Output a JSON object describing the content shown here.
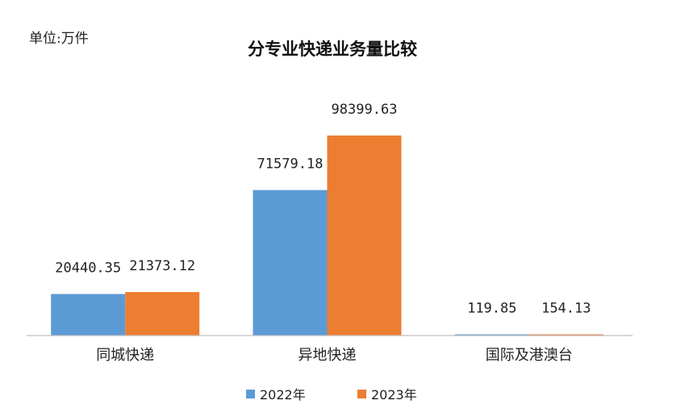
{
  "chart_data": {
    "type": "bar",
    "title": "分专业快递业务量比较",
    "unit_label": "单位:万件",
    "categories": [
      "同城快递",
      "异地快递",
      "国际及港澳台"
    ],
    "series": [
      {
        "name": "2022年",
        "color": "#5B9BD5",
        "values": [
          20440.35,
          71579.18,
          119.85
        ],
        "labels": [
          "20440.35",
          "71579.18",
          "119.85"
        ]
      },
      {
        "name": "2023年",
        "color": "#ED7D31",
        "values": [
          21373.12,
          98399.63,
          154.13
        ],
        "labels": [
          "21373.12",
          "98399.63",
          "154.13"
        ]
      }
    ],
    "ylim": [
      0,
      100000
    ],
    "grid": false,
    "legend_position": "bottom"
  }
}
